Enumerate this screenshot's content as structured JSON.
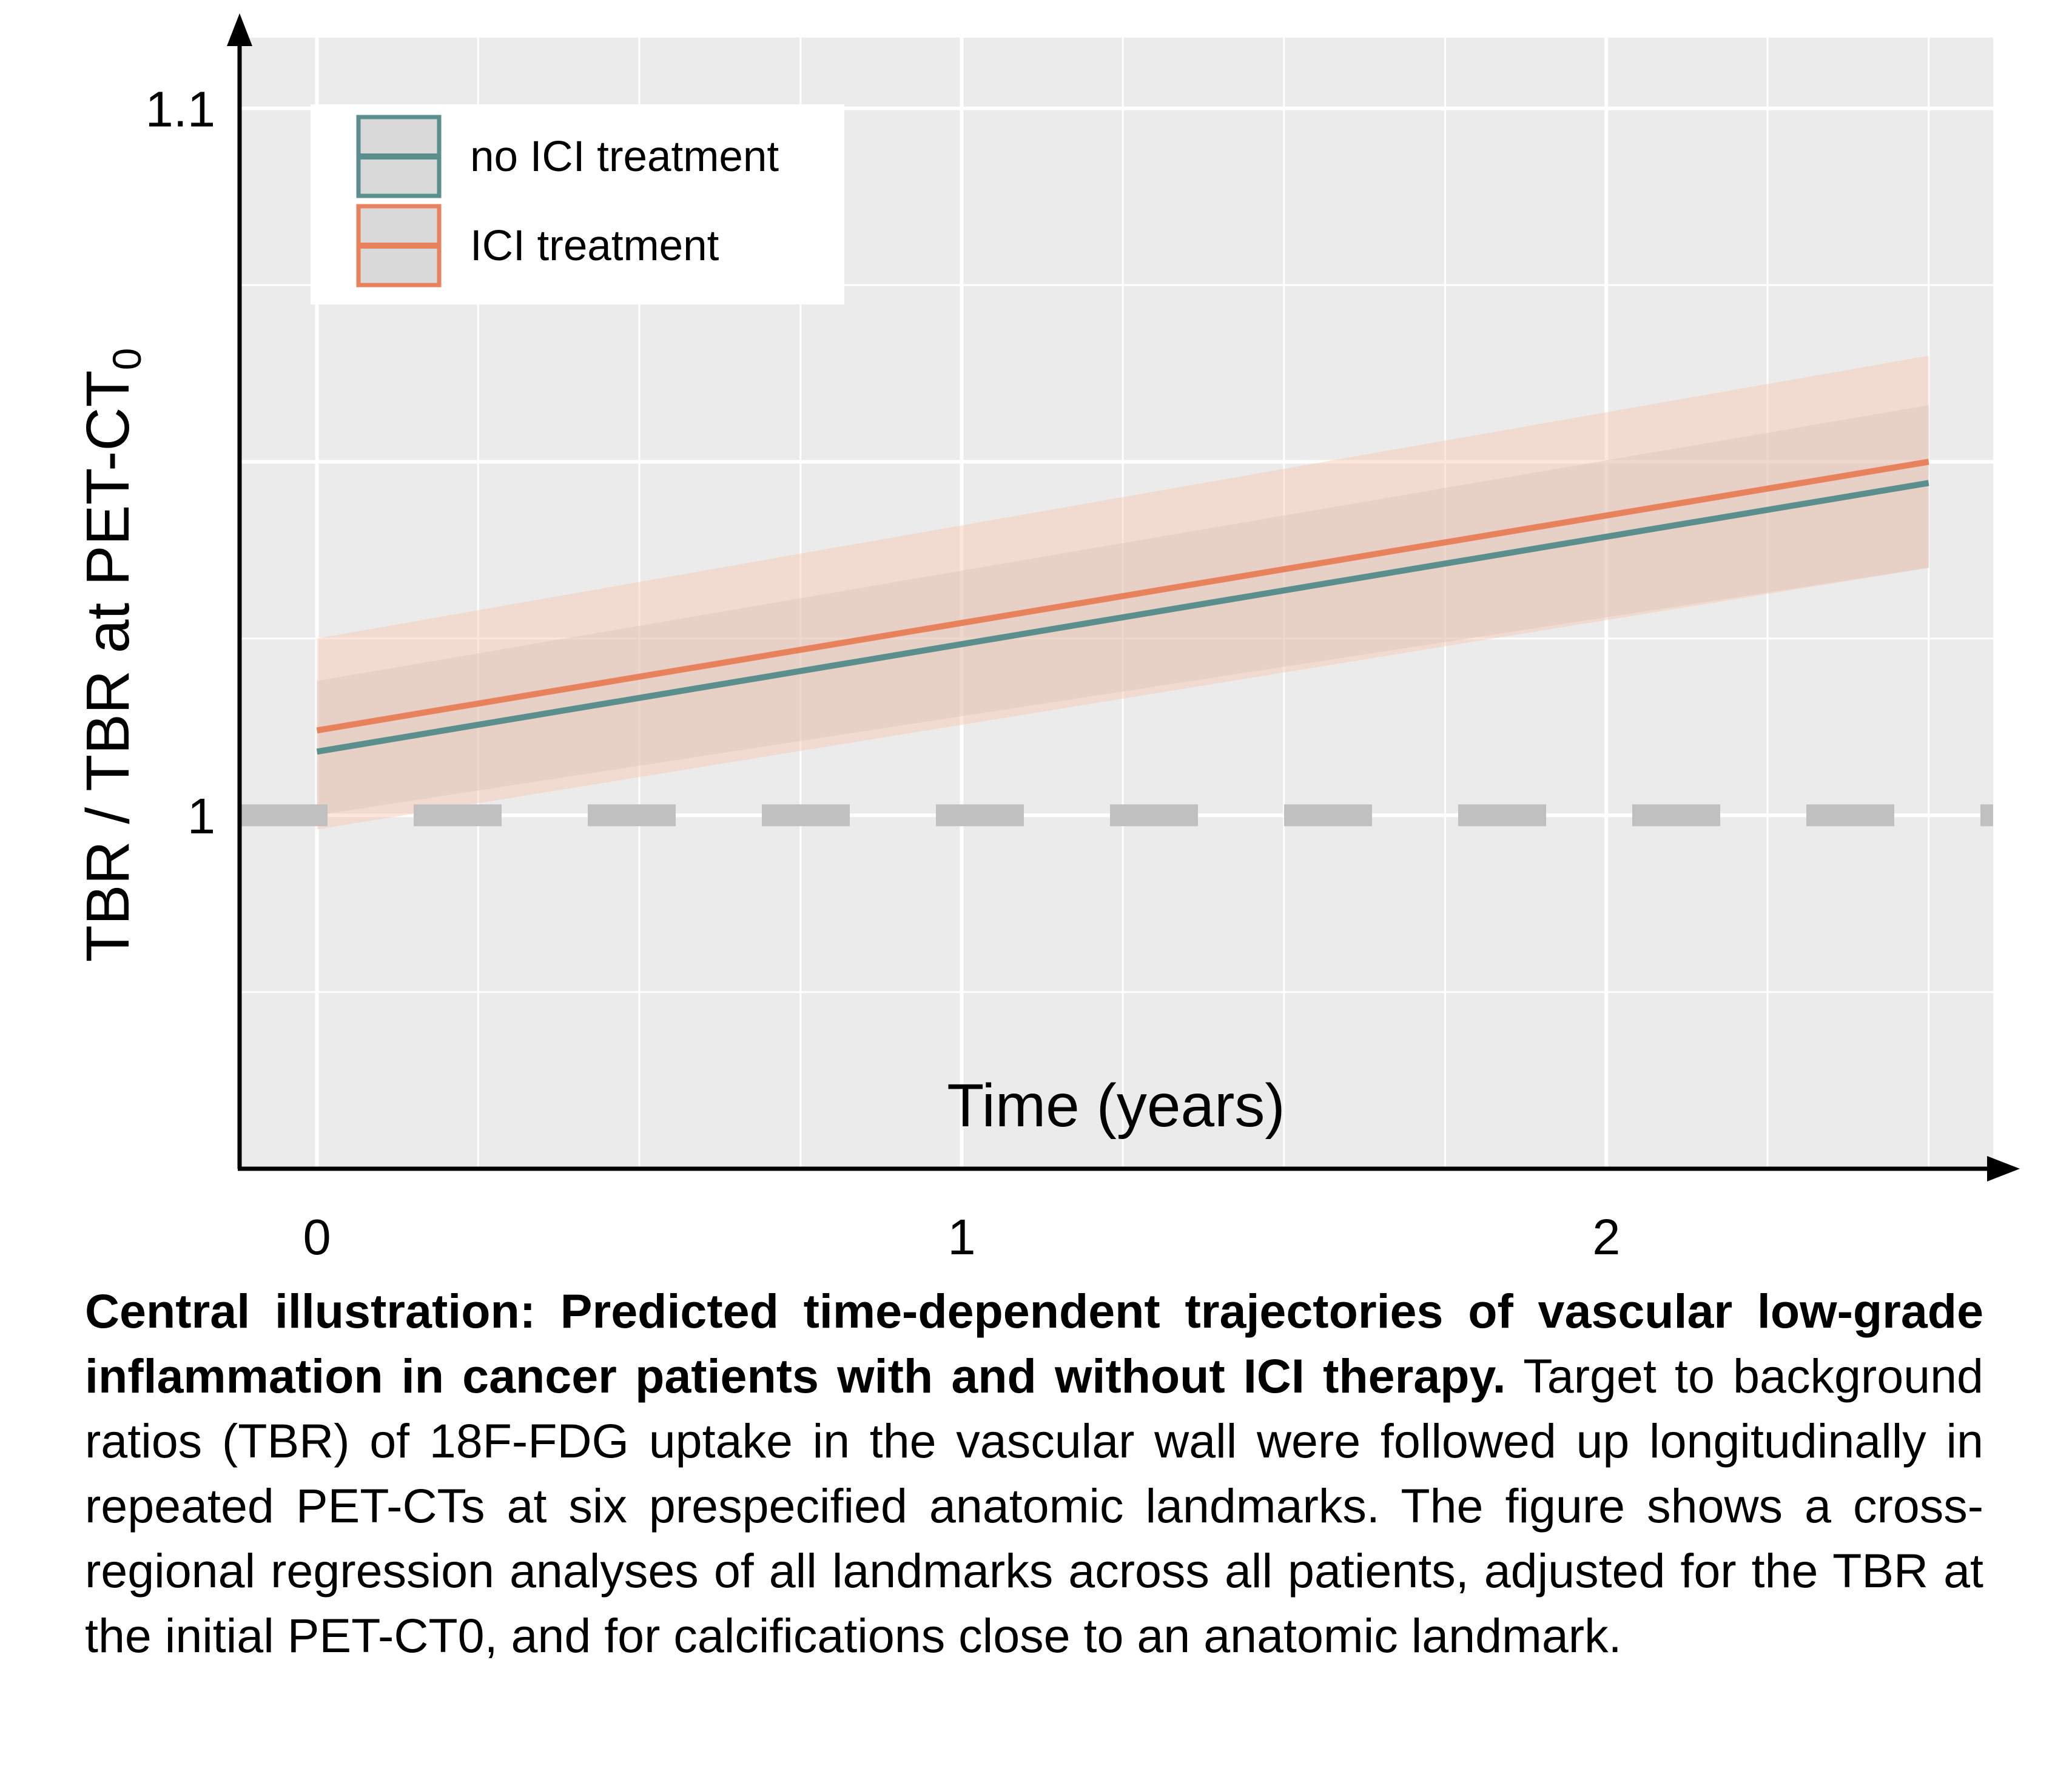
{
  "chart_data": {
    "type": "line",
    "xlabel": "Time (years)",
    "ylabel": "TBR / TBR at PET-CT",
    "ylabel_subscript": "0",
    "x_ticks": [
      "0",
      "1",
      "2"
    ],
    "y_ticks": [
      "1",
      "1.1"
    ],
    "xlim": [
      -0.12,
      2.6
    ],
    "ylim": [
      0.95,
      1.11
    ],
    "grid": true,
    "legend_position": "top-left",
    "reference_line": {
      "y": 1,
      "style": "dashed",
      "color": "#c0c0c0"
    },
    "series": [
      {
        "name": "no ICI treatment",
        "color": "#5a8f8d",
        "x": [
          0,
          2.5
        ],
        "y": [
          1.009,
          1.047
        ],
        "ci_lower": [
          1.0,
          1.035
        ],
        "ci_upper": [
          1.019,
          1.058
        ]
      },
      {
        "name": "ICI treatment",
        "color": "#e8825c",
        "x": [
          0,
          2.5
        ],
        "y": [
          1.012,
          1.05
        ],
        "ci_lower": [
          0.998,
          1.035
        ],
        "ci_upper": [
          1.025,
          1.065
        ]
      }
    ]
  },
  "caption": {
    "title": "Central illustration: Predicted time-dependent trajectories of vascular low-grade inflammation in cancer patients with and without ICI therapy.",
    "body": "Target to background ratios (TBR) of 18F-FDG uptake in the vascular wall were followed up longitudinally in repeated PET-CTs at six prespecified anatomic landmarks. The figure shows a cross-regional regression analyses of all landmarks across all patients, adjusted for the TBR at the initial PET-CT0, and for calcifications close to an anatomic landmark."
  }
}
